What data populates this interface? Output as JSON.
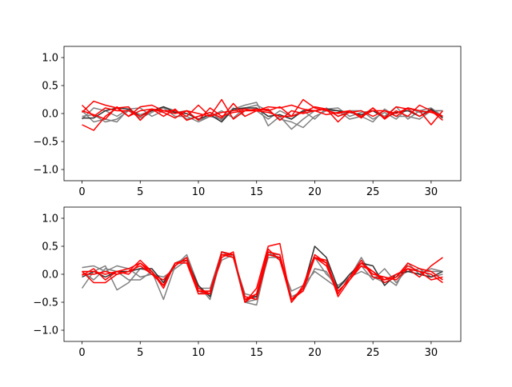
{
  "chart_data": [
    {
      "type": "line",
      "title": "",
      "xlabel": "",
      "ylabel": "",
      "xlim": [
        -1.55,
        32.55
      ],
      "ylim": [
        -1.2,
        1.2
      ],
      "xticks": [
        0,
        5,
        10,
        15,
        20,
        25,
        30
      ],
      "xtick_labels": [
        "0",
        "5",
        "10",
        "15",
        "20",
        "25",
        "30"
      ],
      "yticks": [
        1.0,
        0.5,
        0.0,
        -0.5,
        -1.0
      ],
      "ytick_labels": [
        "1.0",
        "0.5",
        "0.0",
        "−0.5",
        "−1.0"
      ],
      "grid": false,
      "series": [
        {
          "color": "#808080",
          "values": [
            -0.05,
            -0.02,
            -0.15,
            -0.1,
            0.05,
            -0.08,
            0.02,
            0.12,
            0.05,
            -0.1,
            -0.05,
            0.02,
            -0.12,
            0.08,
            0.15,
            0.2,
            -0.22,
            -0.05,
            -0.28,
            -0.1,
            0.05,
            0.08,
            0.1,
            -0.05,
            0.02,
            0.05,
            -0.05,
            0.12,
            -0.1,
            0.05,
            0.1,
            -0.05
          ]
        },
        {
          "color": "#808080",
          "values": [
            0.05,
            -0.15,
            -0.1,
            -0.15,
            0.08,
            0.1,
            -0.05,
            0.05,
            0.02,
            0.05,
            -0.12,
            -0.05,
            0.05,
            -0.08,
            0.1,
            0.15,
            0.05,
            -0.1,
            -0.15,
            -0.25,
            -0.05,
            0.05,
            0.05,
            -0.1,
            -0.05,
            -0.15,
            0.08,
            -0.05,
            -0.05,
            -0.1,
            0.05,
            0.05
          ]
        },
        {
          "color": "#808080",
          "values": [
            -0.1,
            0.1,
            0.05,
            -0.05,
            0.08,
            -0.02,
            0.05,
            0.1,
            -0.05,
            -0.05,
            -0.15,
            -0.05,
            -0.1,
            0.1,
            -0.05,
            0.05,
            -0.1,
            0.05,
            -0.05,
            0.05,
            -0.1,
            0.1,
            -0.05,
            0.05,
            0.05,
            -0.1,
            0.02,
            -0.1,
            0.1,
            0.02,
            0.05,
            0.05
          ]
        },
        {
          "color": "#303030",
          "values": [
            -0.08,
            -0.08,
            0.05,
            0.1,
            0.08,
            -0.05,
            0.05,
            0.12,
            0.02,
            0.0,
            -0.1,
            -0.02,
            -0.15,
            0.08,
            0.1,
            0.1,
            -0.05,
            -0.02,
            -0.1,
            0.05,
            0.05,
            0.08,
            0.05,
            0.02,
            -0.02,
            0.05,
            -0.08,
            0.02,
            0.05,
            -0.05,
            0.08,
            -0.08
          ]
        },
        {
          "color": "#ff0000",
          "values": [
            0.15,
            -0.05,
            0.1,
            0.05,
            0.05,
            -0.05,
            0.08,
            0.05,
            0.0,
            0.05,
            0.0,
            -0.05,
            0.02,
            0.05,
            0.08,
            0.05,
            0.12,
            0.1,
            0.15,
            0.08,
            0.05,
            0.08,
            -0.15,
            0.05,
            -0.05,
            0.1,
            -0.1,
            0.05,
            -0.05,
            0.15,
            0.05,
            -0.05
          ]
        },
        {
          "color": "#ff0000",
          "values": [
            -0.2,
            -0.3,
            -0.05,
            0.1,
            -0.05,
            0.12,
            0.15,
            0.05,
            0.05,
            -0.05,
            0.15,
            -0.05,
            0.25,
            -0.1,
            0.05,
            0.08,
            0.05,
            0.12,
            -0.05,
            0.25,
            0.1,
            0.05,
            0.0,
            0.05,
            -0.05,
            0.05,
            0.05,
            0.0,
            0.1,
            0.05,
            -0.2,
            0.05
          ]
        },
        {
          "color": "#ff0000",
          "values": [
            0.02,
            0.22,
            0.15,
            0.1,
            0.12,
            -0.12,
            0.08,
            0.02,
            -0.08,
            0.05,
            -0.12,
            0.1,
            -0.05,
            0.02,
            0.05,
            0.05,
            0.08,
            -0.12,
            0.05,
            0.0,
            0.05,
            -0.02,
            0.02,
            0.05,
            -0.08,
            0.1,
            -0.08,
            0.12,
            0.08,
            -0.05,
            0.05,
            -0.12
          ]
        },
        {
          "color": "#ff0000",
          "values": [
            0.05,
            -0.02,
            -0.1,
            0.12,
            -0.05,
            0.05,
            0.08,
            -0.05,
            0.08,
            -0.12,
            -0.05,
            0.02,
            -0.08,
            0.18,
            -0.05,
            0.05,
            0.02,
            -0.05,
            -0.05,
            0.02,
            0.12,
            0.08,
            -0.05,
            0.02,
            0.05,
            -0.05,
            0.05,
            -0.05,
            0.1,
            0.05,
            0.02,
            -0.05
          ]
        }
      ]
    },
    {
      "type": "line",
      "title": "",
      "xlabel": "",
      "ylabel": "",
      "xlim": [
        -1.55,
        32.55
      ],
      "ylim": [
        -1.2,
        1.2
      ],
      "xticks": [
        0,
        5,
        10,
        15,
        20,
        25,
        30
      ],
      "xtick_labels": [
        "0",
        "5",
        "10",
        "15",
        "20",
        "25",
        "30"
      ],
      "yticks": [
        1.0,
        0.5,
        0.0,
        -0.5,
        -1.0
      ],
      "ytick_labels": [
        "1.0",
        "0.5",
        "0.0",
        "−0.5",
        "−1.0"
      ],
      "grid": false,
      "series": [
        {
          "color": "#808080",
          "values": [
            -0.25,
            0.05,
            0.15,
            -0.28,
            -0.15,
            0.1,
            0.05,
            -0.45,
            0.15,
            0.35,
            -0.2,
            -0.45,
            0.35,
            0.3,
            -0.5,
            -0.45,
            0.3,
            0.3,
            -0.5,
            -0.25,
            0.3,
            0.0,
            -0.2,
            -0.05,
            0.3,
            -0.05,
            -0.05,
            -0.2,
            0.2,
            0.0,
            0.1,
            0.05
          ]
        },
        {
          "color": "#808080",
          "values": [
            0.12,
            0.15,
            0.05,
            0.15,
            0.1,
            -0.05,
            0.0,
            -0.05,
            0.1,
            0.25,
            -0.35,
            -0.3,
            0.25,
            0.35,
            -0.5,
            -0.55,
            0.35,
            0.35,
            -0.4,
            -0.3,
            0.1,
            0.05,
            -0.3,
            -0.1,
            0.15,
            -0.1,
            0.1,
            -0.15,
            0.1,
            0.05,
            0.05,
            0.05
          ]
        },
        {
          "color": "#808080",
          "values": [
            0.05,
            -0.1,
            0.1,
            0.05,
            -0.1,
            -0.1,
            0.05,
            -0.2,
            0.2,
            0.3,
            -0.25,
            -0.25,
            0.4,
            0.3,
            -0.35,
            -0.4,
            0.4,
            0.25,
            -0.3,
            -0.2,
            0.05,
            -0.1,
            -0.25,
            -0.05,
            0.05,
            -0.05,
            -0.15,
            -0.05,
            0.05,
            0.1,
            -0.05,
            0.0
          ]
        },
        {
          "color": "#303030",
          "values": [
            -0.05,
            0.05,
            -0.05,
            0.05,
            0.05,
            0.1,
            0.1,
            -0.15,
            0.2,
            0.25,
            -0.2,
            -0.4,
            0.4,
            0.35,
            -0.45,
            -0.4,
            0.35,
            0.3,
            -0.45,
            -0.25,
            0.5,
            0.3,
            -0.25,
            0.0,
            0.2,
            0.15,
            -0.2,
            0.0,
            0.05,
            0.0,
            -0.05,
            0.05
          ]
        },
        {
          "color": "#ff0000",
          "values": [
            0.05,
            -0.15,
            -0.15,
            0.0,
            0.05,
            0.25,
            0.05,
            -0.25,
            0.2,
            0.2,
            -0.35,
            -0.35,
            0.4,
            0.35,
            -0.5,
            -0.25,
            0.5,
            0.55,
            -0.5,
            -0.2,
            0.35,
            0.2,
            -0.4,
            -0.1,
            0.2,
            0.05,
            -0.1,
            0.0,
            0.1,
            -0.05,
            0.15,
            0.3
          ]
        },
        {
          "color": "#ff0000",
          "values": [
            -0.02,
            0.1,
            -0.1,
            0.05,
            0.1,
            0.2,
            0.0,
            -0.2,
            0.2,
            0.25,
            -0.25,
            -0.35,
            0.3,
            0.4,
            -0.5,
            -0.35,
            0.4,
            0.35,
            -0.45,
            -0.25,
            0.3,
            0.25,
            -0.35,
            -0.05,
            0.2,
            0.0,
            -0.05,
            -0.1,
            0.1,
            0.05,
            -0.1,
            -0.05
          ]
        },
        {
          "color": "#ff0000",
          "values": [
            0.0,
            0.0,
            0.05,
            0.0,
            0.05,
            0.15,
            0.0,
            -0.1,
            0.15,
            0.3,
            -0.3,
            -0.35,
            0.35,
            0.35,
            -0.45,
            -0.35,
            0.45,
            0.25,
            -0.45,
            -0.3,
            0.3,
            0.2,
            -0.3,
            -0.1,
            0.15,
            0.05,
            -0.15,
            -0.05,
            0.2,
            0.1,
            0.05,
            -0.1
          ]
        },
        {
          "color": "#ff0000",
          "values": [
            0.05,
            0.05,
            0.0,
            0.05,
            0.0,
            0.2,
            0.05,
            -0.2,
            0.2,
            0.25,
            -0.3,
            -0.3,
            0.35,
            0.3,
            -0.4,
            -0.45,
            0.35,
            0.3,
            -0.5,
            -0.25,
            0.3,
            0.15,
            -0.35,
            -0.05,
            0.25,
            -0.05,
            -0.1,
            -0.05,
            0.15,
            0.05,
            0.0,
            -0.15
          ]
        }
      ]
    }
  ]
}
